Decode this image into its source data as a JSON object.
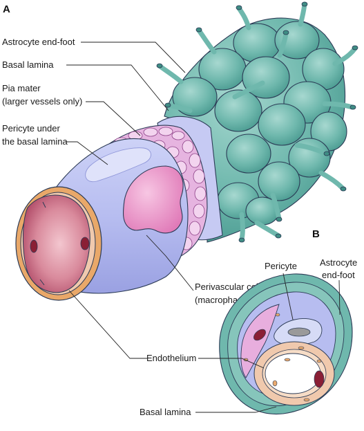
{
  "panels": {
    "a": "A",
    "b": "B"
  },
  "panel_a": {
    "labels": {
      "astrocyte_end_foot": "Astrocyte end-foot",
      "basal_lamina": "Basal lamina",
      "pia_mater_line1": "Pia mater",
      "pia_mater_line2": "(larger vessels only)",
      "pericyte_line1": "Pericyte under",
      "pericyte_line2": "the basal lamina",
      "perivascular_line1": "Perivascular cell",
      "perivascular_line2": "(macrophage)",
      "endothelium": "Endothelium"
    }
  },
  "panel_b": {
    "labels": {
      "pericyte": "Pericyte",
      "astrocyte_line1": "Astrocyte",
      "astrocyte_line2": "end-foot",
      "basal_lamina": "Basal lamina"
    }
  },
  "colors": {
    "astrocyte": "#6fb8ad",
    "astrocyte_dark": "#3f8d84",
    "basal_lamina": "#b7bdf0",
    "pia_mater": "#e6b4e0",
    "pericyte": "#c9cdf3",
    "perivascular_cell": "#e98fc6",
    "endothelium": "#f0c9ad",
    "lumen": "#b24e6a",
    "nucleus": "#8a1f35"
  }
}
